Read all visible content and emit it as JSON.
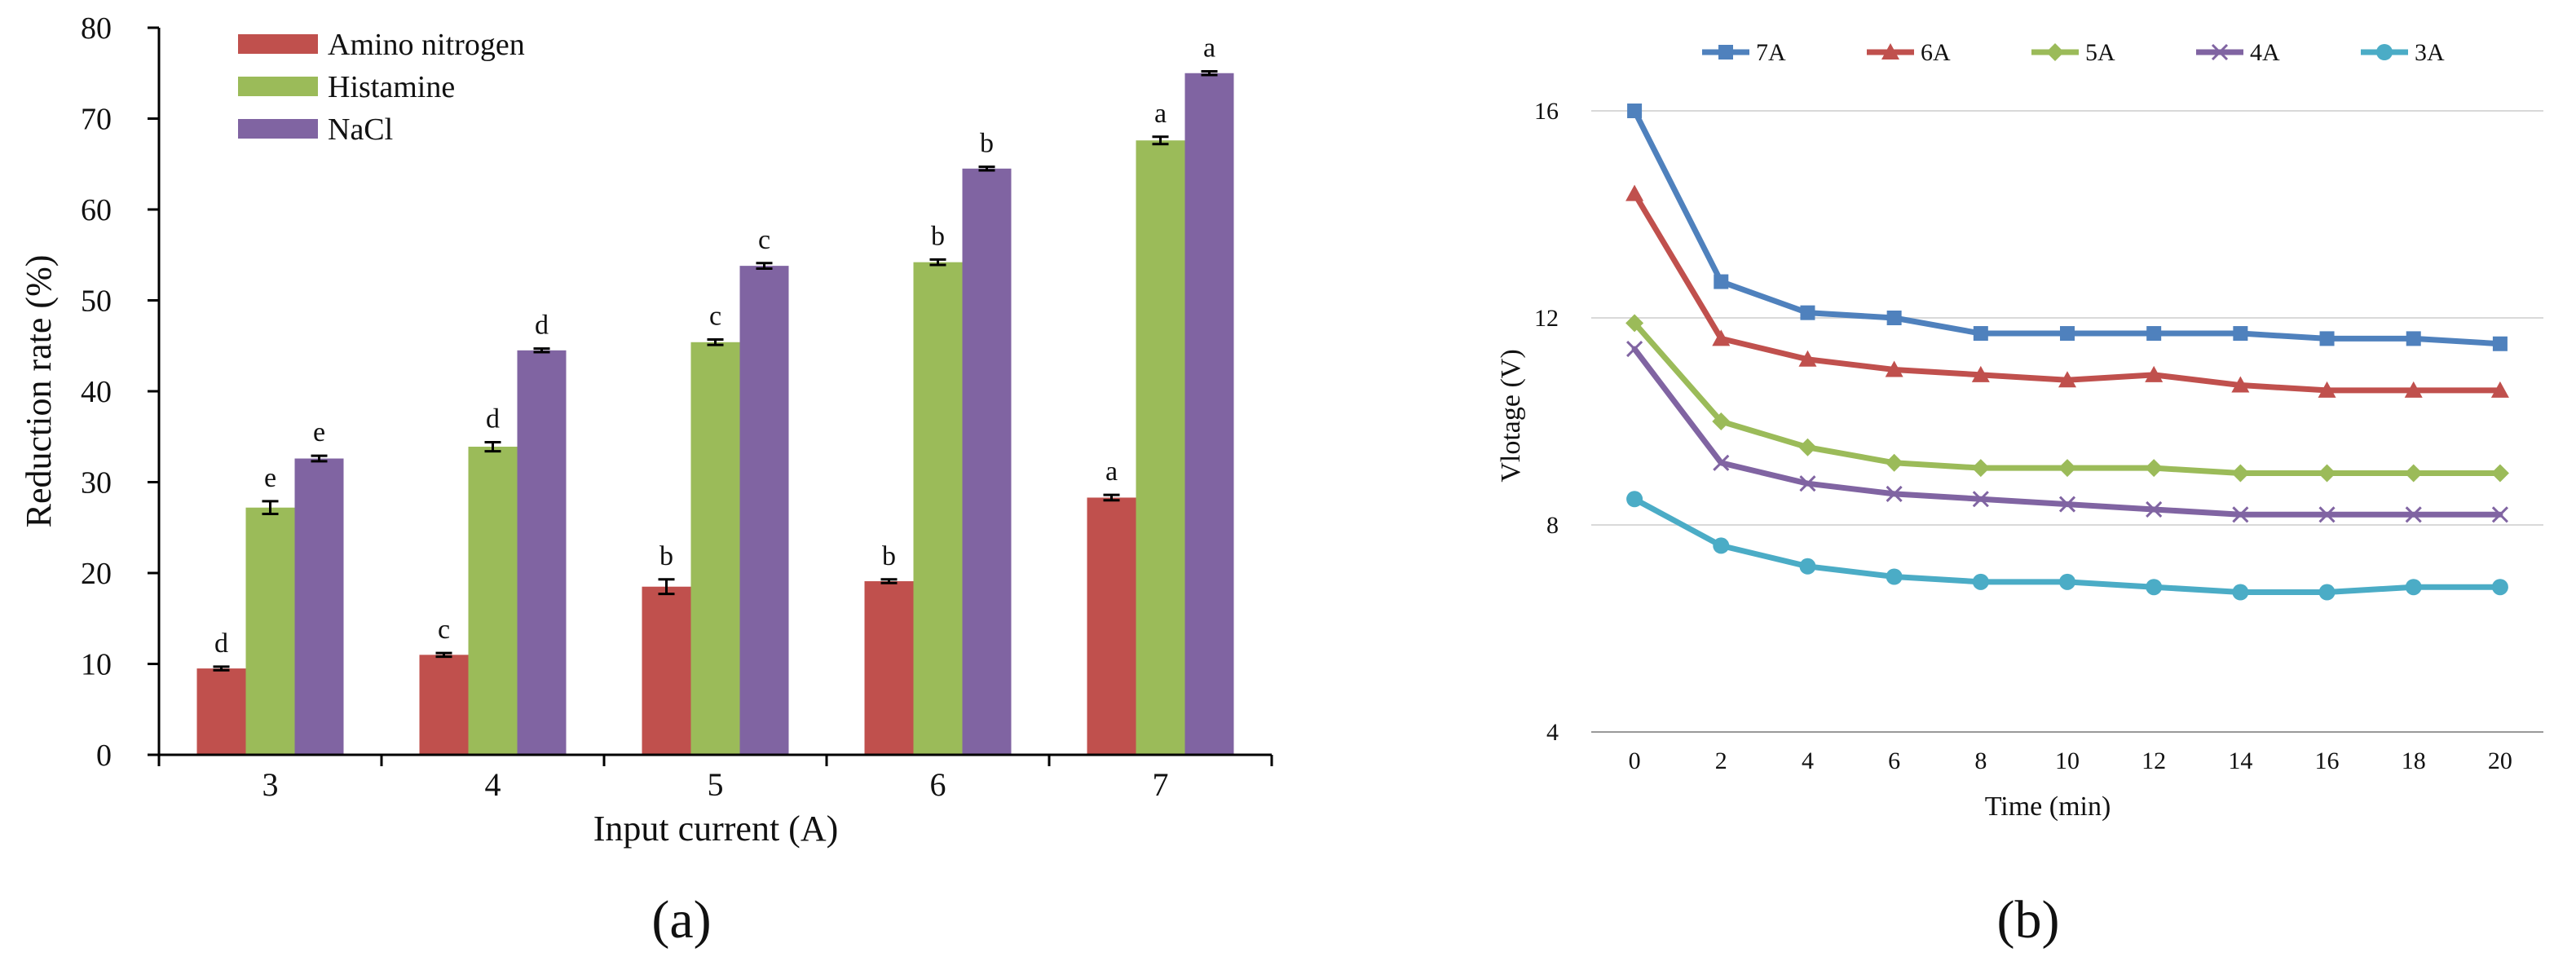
{
  "chart_data": [
    {
      "panel_label": "(a)",
      "type": "bar",
      "title": "",
      "xlabel": "Input current (A)",
      "ylabel": "Reduction rate (%)",
      "ylim": [
        0,
        80
      ],
      "yticks": [
        0,
        10,
        20,
        30,
        40,
        50,
        60,
        70,
        80
      ],
      "categories": [
        "3",
        "4",
        "5",
        "6",
        "7"
      ],
      "legend_position": "top-left",
      "series": [
        {
          "name": "Amino nitrogen",
          "color": "#C0504D",
          "values": [
            9.5,
            11.0,
            18.5,
            19.1,
            28.3
          ],
          "errors": [
            0.2,
            0.2,
            0.8,
            0.2,
            0.3
          ],
          "letters": [
            "d",
            "c",
            "b",
            "b",
            "a"
          ]
        },
        {
          "name": "Histamine",
          "color": "#9BBB59",
          "values": [
            27.2,
            33.9,
            45.4,
            54.2,
            67.6
          ],
          "errors": [
            0.7,
            0.5,
            0.3,
            0.3,
            0.4
          ],
          "letters": [
            "e",
            "d",
            "c",
            "b",
            "a"
          ]
        },
        {
          "name": "NaCl",
          "color": "#8064A2",
          "values": [
            32.6,
            44.5,
            53.8,
            64.5,
            75.0
          ],
          "errors": [
            0.3,
            0.2,
            0.3,
            0.2,
            0.2
          ],
          "letters": [
            "e",
            "d",
            "c",
            "b",
            "a"
          ]
        }
      ]
    },
    {
      "panel_label": "(b)",
      "type": "line",
      "title": "",
      "xlabel": "Time (min)",
      "ylabel": "Vlotage (V)",
      "x": [
        0,
        2,
        4,
        6,
        8,
        10,
        12,
        14,
        16,
        18,
        20
      ],
      "ylim": [
        4,
        16
      ],
      "yticks": [
        4,
        8,
        12,
        16
      ],
      "grid": true,
      "legend_position": "top",
      "series": [
        {
          "name": "7A",
          "color": "#4F81BD",
          "marker": "square",
          "values": [
            16.0,
            12.7,
            12.1,
            12.0,
            11.7,
            11.7,
            11.7,
            11.7,
            11.6,
            11.6,
            11.5
          ]
        },
        {
          "name": "6A",
          "color": "#C0504D",
          "marker": "triangle",
          "values": [
            14.4,
            11.6,
            11.2,
            11.0,
            10.9,
            10.8,
            10.9,
            10.7,
            10.6,
            10.6,
            10.6
          ]
        },
        {
          "name": "5A",
          "color": "#9BBB59",
          "marker": "diamond",
          "values": [
            11.9,
            10.0,
            9.5,
            9.2,
            9.1,
            9.1,
            9.1,
            9.0,
            9.0,
            9.0,
            9.0
          ]
        },
        {
          "name": "4A",
          "color": "#8064A2",
          "marker": "x",
          "values": [
            11.4,
            9.2,
            8.8,
            8.6,
            8.5,
            8.4,
            8.3,
            8.2,
            8.2,
            8.2,
            8.2
          ]
        },
        {
          "name": "3A",
          "color": "#4BACC6",
          "marker": "circle",
          "values": [
            8.5,
            7.6,
            7.2,
            7.0,
            6.9,
            6.9,
            6.8,
            6.7,
            6.7,
            6.8,
            6.8
          ]
        }
      ]
    }
  ]
}
